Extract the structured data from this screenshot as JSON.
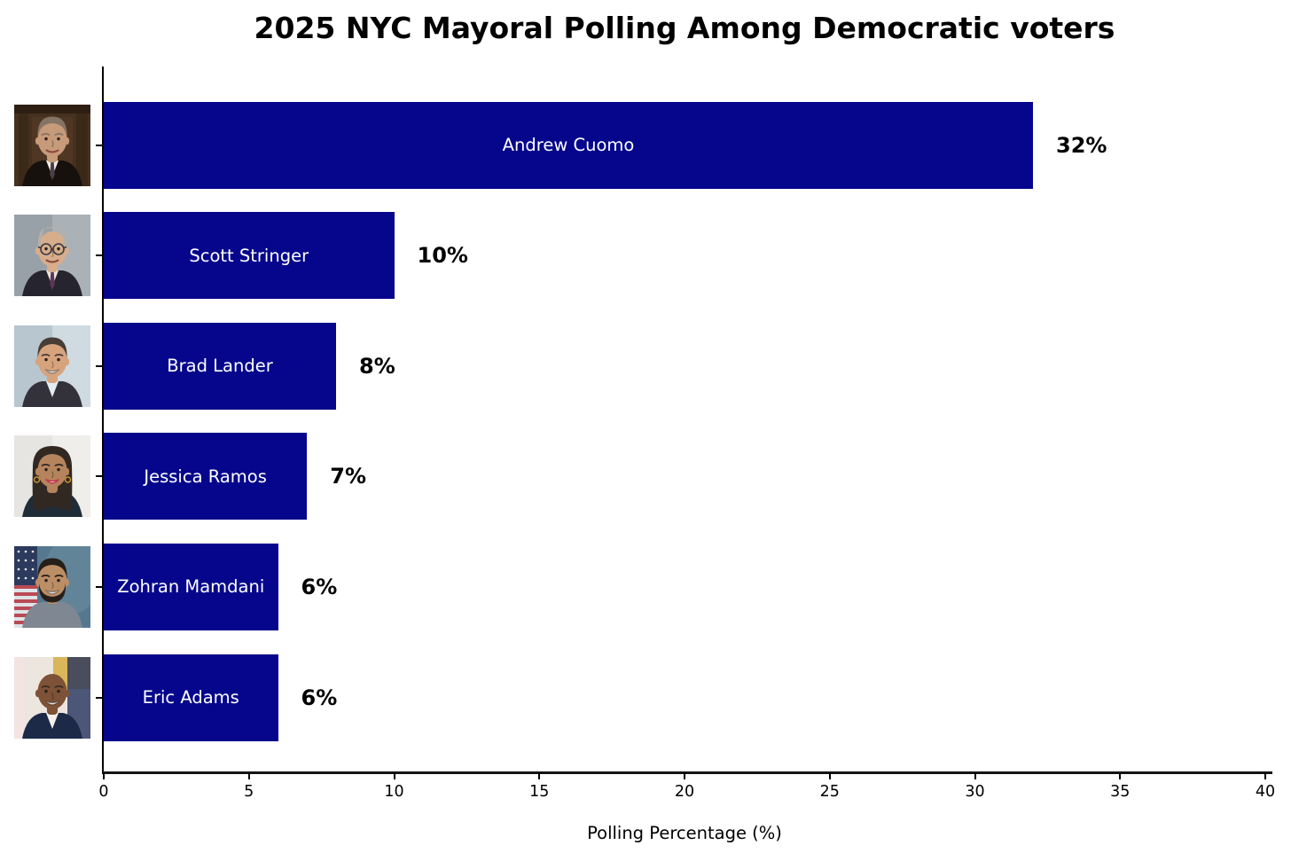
{
  "title": "2025 NYC Mayoral Polling Among Democratic voters",
  "chart_data": {
    "type": "bar",
    "orientation": "horizontal",
    "title": "2025 NYC Mayoral Polling Among Democratic voters",
    "xlabel": "Polling Percentage (%)",
    "ylabel": "",
    "xlim": [
      0,
      40
    ],
    "xticks": [
      0,
      5,
      10,
      15,
      20,
      25,
      30,
      35,
      40
    ],
    "grid": false,
    "legend": false,
    "bar_color": "#06068C",
    "bar_text_color": "#FFFFFF",
    "value_text_color": "#000000",
    "categories": [
      "Andrew Cuomo",
      "Scott Stringer",
      "Brad Lander",
      "Jessica Ramos",
      "Zohran Mamdani",
      "Eric Adams"
    ],
    "values": [
      32,
      10,
      8,
      7,
      6,
      6
    ],
    "value_labels": [
      "32%",
      "10%",
      "8%",
      "7%",
      "6%",
      "6%"
    ]
  },
  "candidates": [
    {
      "name": "Andrew Cuomo",
      "value_label": "32%",
      "photo": "photo-andrew-cuomo",
      "avatar": {
        "bg": "#46301f",
        "panels": true,
        "hair": "#857465",
        "hairType": "cap",
        "skin": "#c79a79",
        "suit": "#17110d",
        "shirt": "#efeae2",
        "tie": "#4a3f4a",
        "smile": "line"
      }
    },
    {
      "name": "Scott Stringer",
      "value_label": "10%",
      "photo": "photo-scott-stringer",
      "avatar": {
        "bg": "#99a1a8",
        "bg2": "#aab1b7",
        "hair": "#b5b0a8",
        "hairType": "balding",
        "glasses": true,
        "skin": "#d7ad8c",
        "suit": "#26242e",
        "shirt": "#e9e4da",
        "tie": "#5c3658",
        "smile": "line"
      }
    },
    {
      "name": "Brad Lander",
      "value_label": "8%",
      "photo": "photo-brad-lander",
      "avatar": {
        "bg": "#b7c6cf",
        "bg2": "#cfdae1",
        "hair": "#473d35",
        "hairType": "cap",
        "skin": "#d7a37d",
        "suit": "#33323a",
        "shirt": "#e3ecf2",
        "smile": "big"
      }
    },
    {
      "name": "Jessica Ramos",
      "value_label": "7%",
      "photo": "photo-jessica-ramos",
      "avatar": {
        "bg": "#e6e5e2",
        "bg2": "#efeeea",
        "hair": "#322822",
        "hairType": "long",
        "skin": "#b5845d",
        "suit": "#1f2d38",
        "smile": "big",
        "lips": "#c0394b",
        "earrings": true
      }
    },
    {
      "name": "Zohran Mamdani",
      "value_label": "6%",
      "photo": "photo-zohran-mamdani",
      "avatar": {
        "bg": "#56788f",
        "flag": true,
        "hair": "#261f19",
        "hairType": "cap",
        "beard": true,
        "skin": "#bb8e66",
        "suit": "#7e8792",
        "smile": "big"
      }
    },
    {
      "name": "Eric Adams",
      "value_label": "6%",
      "photo": "photo-eric-adams",
      "avatar": {
        "bg": "#ece6df",
        "bgLeftStrip": "#f3e3e1",
        "bgTopRight": "#d9b659",
        "bgRightPanel": "#24335c",
        "hairType": "bald",
        "skin": "#7d5236",
        "suit": "#1c2a47",
        "shirt": "#f4f1ec",
        "smile": "big"
      }
    }
  ]
}
